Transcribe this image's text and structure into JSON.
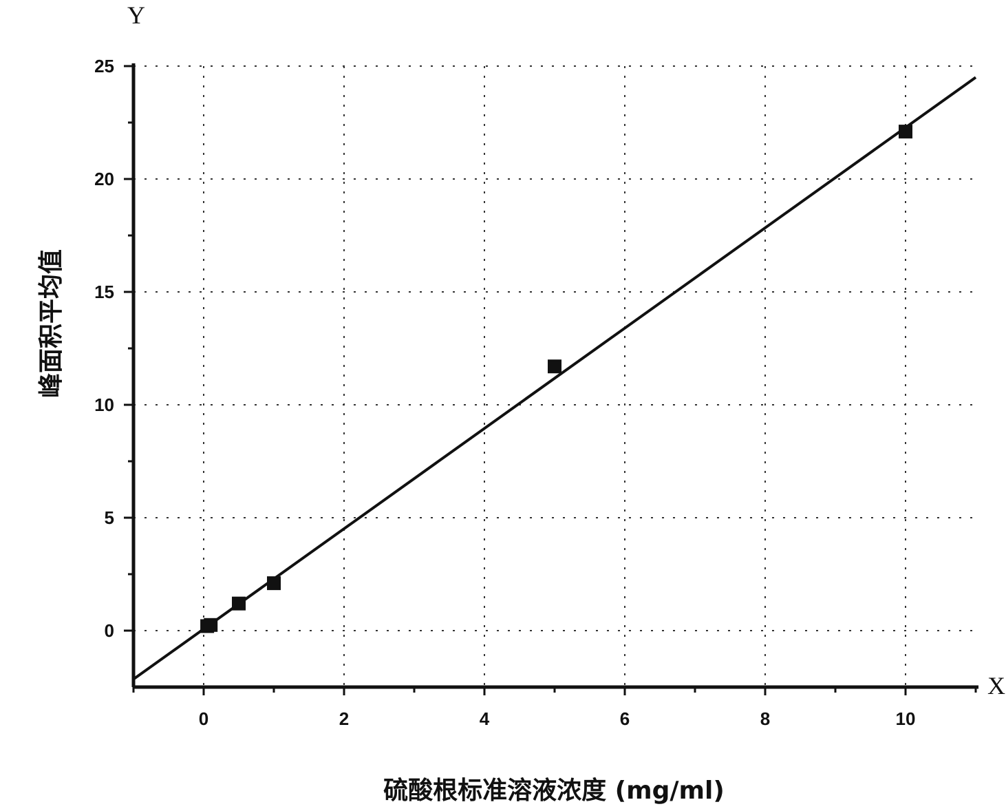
{
  "chart_data": {
    "type": "scatter",
    "title": "",
    "xlabel": "硫酸根标准溶液浓度 (mg/ml)",
    "ylabel": "峰面积平均值",
    "x_axis_letter": "X",
    "y_axis_letter": "Y",
    "xlim": [
      -1,
      11
    ],
    "ylim": [
      -2.5,
      25
    ],
    "x_ticks": [
      0,
      2,
      4,
      6,
      8,
      10
    ],
    "x_tick_labels": [
      "0",
      "2",
      "4",
      "6",
      "8",
      "10"
    ],
    "y_ticks": [
      0,
      5,
      10,
      15,
      20,
      25
    ],
    "y_tick_labels": [
      "0",
      "5",
      "10",
      "15",
      "20",
      "25"
    ],
    "grid": true,
    "legend": "none",
    "series": [
      {
        "marker": "square",
        "x": [
          0.05,
          0.1,
          0.5,
          1,
          5,
          10
        ],
        "y": [
          0.2,
          0.25,
          1.2,
          2.1,
          11.7,
          22.1
        ]
      }
    ],
    "fit_line": {
      "x": [
        -1,
        11
      ],
      "y": [
        -2.15,
        24.5
      ]
    },
    "colors": {
      "ink": "#111111",
      "grid": "#333333",
      "background": "#ffffff"
    }
  }
}
